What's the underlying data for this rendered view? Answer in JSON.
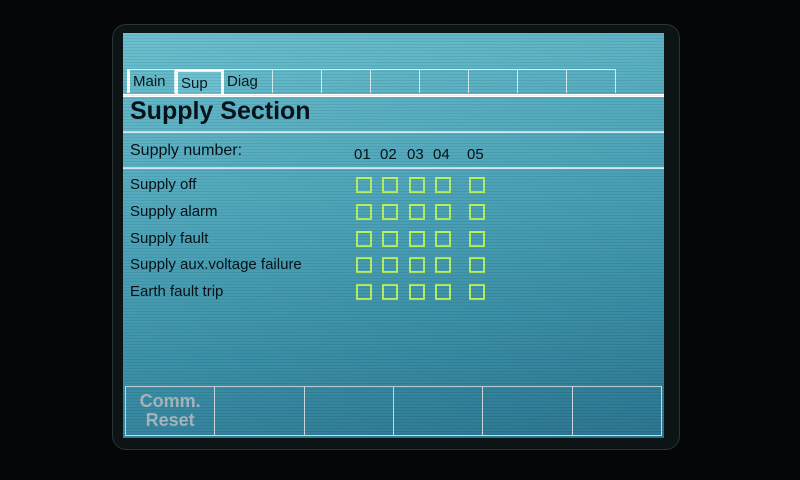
{
  "tabs": [
    "Main",
    "Sup",
    "Diag",
    "",
    "",
    "",
    "",
    "",
    "",
    ""
  ],
  "active_tab": "Sup",
  "title": "Supply Section",
  "supply_number_label": "Supply number:",
  "columns": [
    "01",
    "02",
    "03",
    "04",
    "05"
  ],
  "rows": [
    {
      "label": "Supply off",
      "states": [
        false,
        false,
        false,
        false,
        false
      ]
    },
    {
      "label": "Supply alarm",
      "states": [
        false,
        false,
        false,
        false,
        false
      ]
    },
    {
      "label": "Supply fault",
      "states": [
        false,
        false,
        false,
        false,
        false
      ]
    },
    {
      "label": "Supply aux.voltage failure",
      "states": [
        false,
        false,
        false,
        false,
        false
      ]
    },
    {
      "label": "Earth fault trip",
      "states": [
        false,
        false,
        false,
        false,
        false
      ]
    }
  ],
  "softkeys": [
    {
      "line1": "Comm.",
      "line2": "Reset"
    },
    {
      "line1": "",
      "line2": ""
    },
    {
      "line1": "",
      "line2": ""
    },
    {
      "line1": "",
      "line2": ""
    },
    {
      "line1": "",
      "line2": ""
    },
    {
      "line1": "",
      "line2": ""
    }
  ],
  "colors": {
    "indicator_off": "#b8f060",
    "screen": "#4fa6ba"
  }
}
